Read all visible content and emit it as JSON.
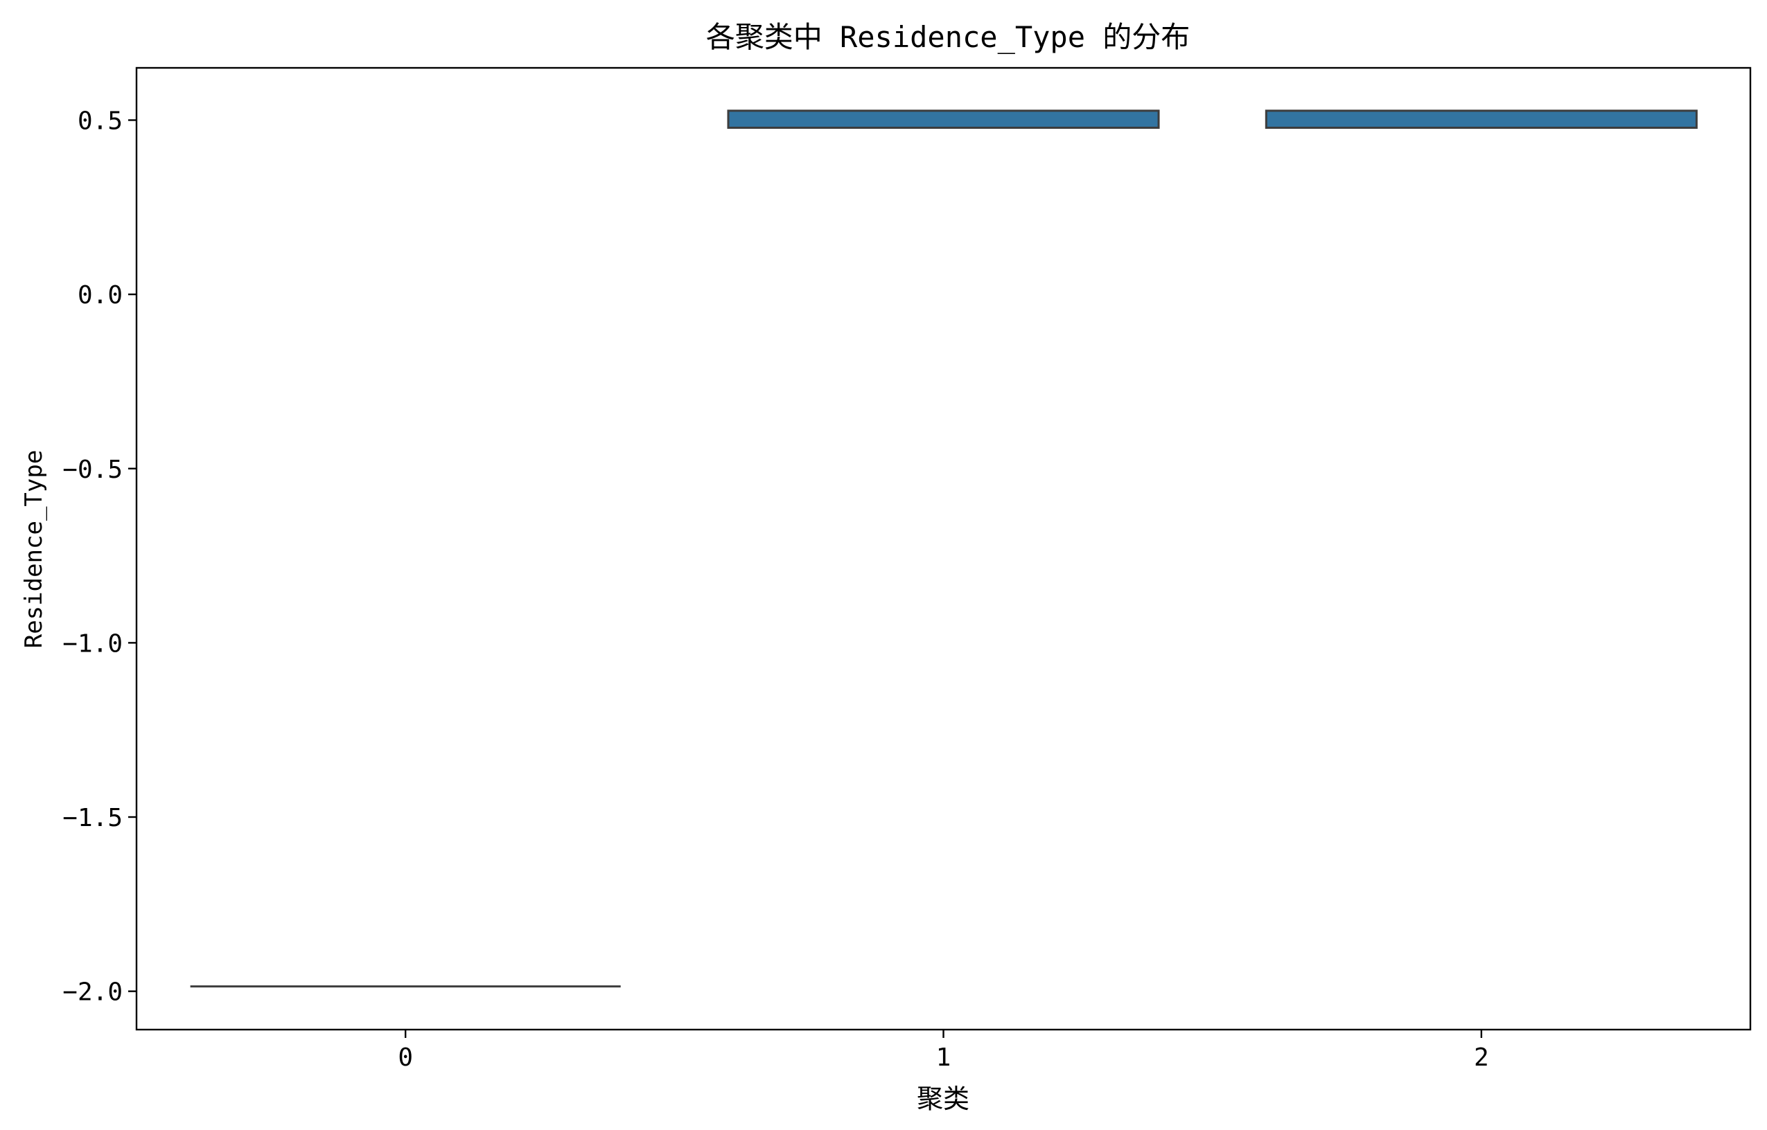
{
  "chart_data": {
    "type": "box",
    "title": "各聚类中 Residence_Type 的分布",
    "xlabel": "聚类",
    "ylabel": "Residence_Type",
    "categories": [
      "0",
      "1",
      "2"
    ],
    "ylim": [
      -2.11,
      0.65
    ],
    "y_ticks": [
      0.5,
      0.0,
      -0.5,
      -1.0,
      -1.5,
      -2.0
    ],
    "y_tick_labels": [
      "0.5",
      "0.0",
      "−0.5",
      "−1.0",
      "−1.5",
      "−2.0"
    ],
    "grid": false,
    "boxes": [
      {
        "category": "0",
        "q1": -1.986,
        "median": -1.986,
        "q3": -1.986,
        "whisker_low": -1.986,
        "whisker_high": -1.986
      },
      {
        "category": "1",
        "q1": 0.478,
        "median": 0.478,
        "q3": 0.527,
        "whisker_low": 0.478,
        "whisker_high": 0.527
      },
      {
        "category": "2",
        "q1": 0.478,
        "median": 0.478,
        "q3": 0.527,
        "whisker_low": 0.478,
        "whisker_high": 0.527
      }
    ],
    "colors": {
      "box_fill": "#3274a1",
      "box_edge": "#3d3d3d",
      "axis": "#000000"
    }
  }
}
